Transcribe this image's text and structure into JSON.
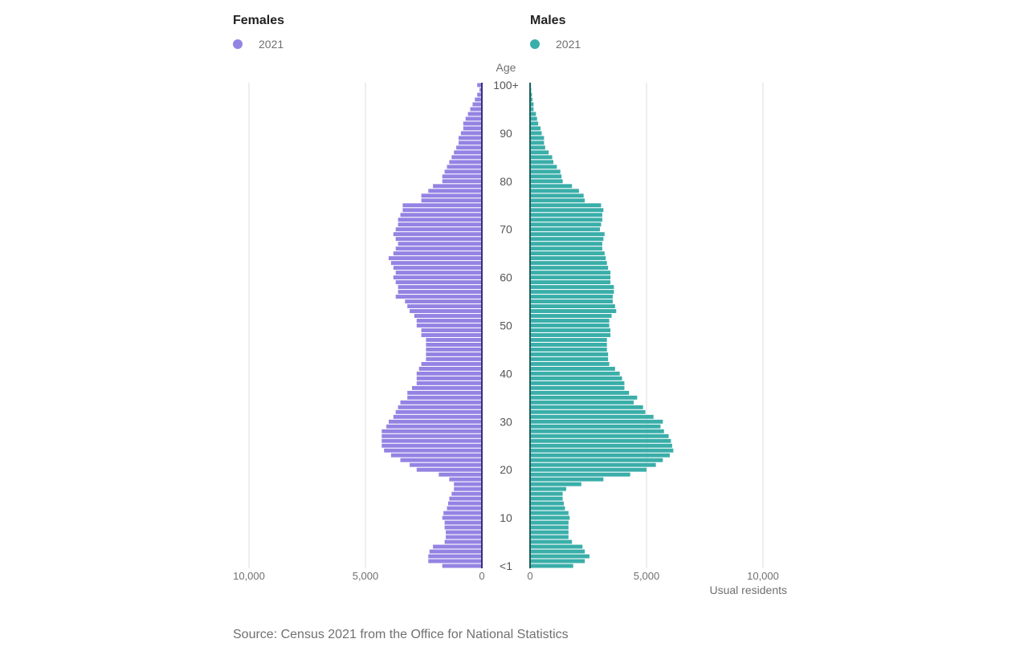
{
  "chart_data": {
    "type": "bar",
    "orientation": "horizontal",
    "subtype": "population-pyramid",
    "age_axis_label": "Age",
    "value_axis_label": "Usual residents",
    "age_tick_labels": [
      "<1",
      "10",
      "20",
      "30",
      "40",
      "50",
      "60",
      "70",
      "80",
      "90",
      "100+"
    ],
    "value_ticks": [
      0,
      5000,
      10000
    ],
    "value_tick_labels": [
      "0",
      "5,000",
      "10,000"
    ],
    "xlim": [
      0,
      10000
    ],
    "grid": true,
    "ages": [
      0,
      1,
      2,
      3,
      4,
      5,
      6,
      7,
      8,
      9,
      10,
      11,
      12,
      13,
      14,
      15,
      16,
      17,
      18,
      19,
      20,
      21,
      22,
      23,
      24,
      25,
      26,
      27,
      28,
      29,
      30,
      31,
      32,
      33,
      34,
      35,
      36,
      37,
      38,
      39,
      40,
      41,
      42,
      43,
      44,
      45,
      46,
      47,
      48,
      49,
      50,
      51,
      52,
      53,
      54,
      55,
      56,
      57,
      58,
      59,
      60,
      61,
      62,
      63,
      64,
      65,
      66,
      67,
      68,
      69,
      70,
      71,
      72,
      73,
      74,
      75,
      76,
      77,
      78,
      79,
      80,
      81,
      82,
      83,
      84,
      85,
      86,
      87,
      88,
      89,
      90,
      91,
      92,
      93,
      94,
      95,
      96,
      97,
      98,
      99,
      100
    ],
    "series": [
      {
        "name": "Females",
        "legend_label": "2021",
        "color": "#9483e3",
        "side": "left",
        "values": [
          1700,
          2300,
          2300,
          2250,
          2100,
          1600,
          1550,
          1550,
          1600,
          1600,
          1700,
          1650,
          1500,
          1450,
          1400,
          1300,
          1200,
          1200,
          1400,
          1850,
          2800,
          3100,
          3500,
          3900,
          4200,
          4300,
          4300,
          4300,
          4300,
          4100,
          4000,
          3800,
          3700,
          3600,
          3500,
          3200,
          3200,
          3000,
          2800,
          2800,
          2800,
          2700,
          2600,
          2400,
          2400,
          2400,
          2400,
          2400,
          2600,
          2600,
          2800,
          2800,
          2900,
          3100,
          3200,
          3300,
          3700,
          3600,
          3600,
          3700,
          3800,
          3700,
          3800,
          3900,
          4000,
          3800,
          3700,
          3600,
          3700,
          3800,
          3700,
          3600,
          3600,
          3500,
          3400,
          3400,
          2600,
          2600,
          2300,
          2100,
          1700,
          1700,
          1600,
          1500,
          1400,
          1300,
          1200,
          1100,
          1000,
          1000,
          900,
          800,
          800,
          700,
          600,
          500,
          400,
          300,
          200,
          100,
          200
        ]
      },
      {
        "name": "Males",
        "legend_label": "2021",
        "color": "#3aaea9",
        "side": "right",
        "values": [
          1850,
          2350,
          2550,
          2350,
          2250,
          1800,
          1650,
          1650,
          1650,
          1650,
          1700,
          1650,
          1500,
          1450,
          1400,
          1400,
          1550,
          2200,
          3150,
          4300,
          5000,
          5400,
          5700,
          6000,
          6150,
          6100,
          6050,
          5950,
          5750,
          5600,
          5700,
          5300,
          4950,
          4850,
          4450,
          4600,
          4250,
          4050,
          4050,
          3950,
          3850,
          3650,
          3400,
          3350,
          3350,
          3300,
          3300,
          3300,
          3450,
          3450,
          3400,
          3400,
          3500,
          3700,
          3650,
          3550,
          3550,
          3600,
          3600,
          3450,
          3450,
          3450,
          3350,
          3300,
          3250,
          3200,
          3100,
          3100,
          3150,
          3200,
          3000,
          3050,
          3100,
          3100,
          3150,
          3050,
          2350,
          2300,
          2100,
          1800,
          1400,
          1350,
          1300,
          1150,
          1000,
          950,
          800,
          650,
          600,
          600,
          500,
          450,
          350,
          300,
          250,
          150,
          150,
          100,
          80,
          50,
          40
        ]
      }
    ],
    "source": "Source: Census 2021 from the Office for National Statistics"
  },
  "legend": {
    "females_title": "Females",
    "females_year": "2021",
    "males_title": "Males",
    "males_year": "2021"
  }
}
